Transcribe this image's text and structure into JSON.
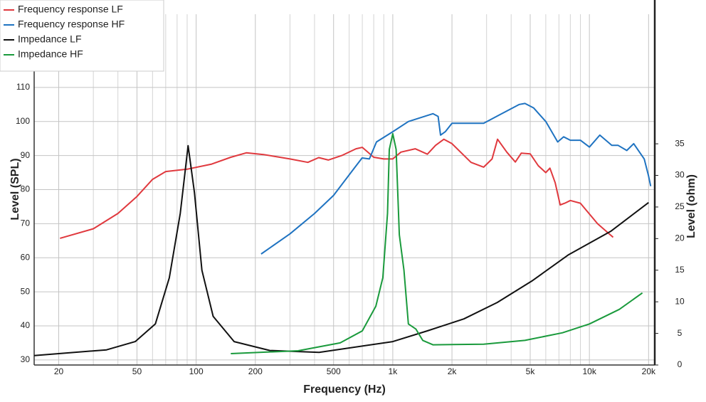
{
  "chart_data": {
    "type": "line",
    "xlabel": "Frequency (Hz)",
    "ylabel": "Level (SPL)",
    "y2label": "Level (ohm)",
    "log_x": true,
    "grid": true,
    "legend": "top-left",
    "xlim": [
      15,
      21500
    ],
    "xticks": [
      20,
      50,
      100,
      200,
      500,
      {
        "value": 1000,
        "label": "1k"
      },
      {
        "value": 2000,
        "label": "2k"
      },
      {
        "value": 5000,
        "label": "5k"
      },
      {
        "value": 10000,
        "label": "10k"
      },
      {
        "value": 20000,
        "label": "20k"
      }
    ],
    "xminor": [
      30,
      40,
      60,
      70,
      80,
      90,
      300,
      400,
      600,
      700,
      800,
      900,
      3000,
      4000,
      6000,
      7000,
      8000,
      9000
    ],
    "ylim": [
      28.5,
      131.5
    ],
    "yticks": [
      30,
      40,
      50,
      60,
      70,
      80,
      90,
      100,
      110
    ],
    "y2lim": [
      0,
      55.5
    ],
    "y2ticks": [
      0,
      5,
      10,
      15,
      20,
      25,
      30,
      35
    ],
    "series": [
      {
        "name": "Frequency response LF",
        "color": "#e0393e",
        "axis": "y",
        "x": [
          20.3,
          30,
          40,
          50,
          60,
          70,
          90,
          120,
          150,
          180,
          220,
          300,
          370,
          420,
          470,
          550,
          650,
          700,
          800,
          900,
          1000,
          1100,
          1300,
          1500,
          1650,
          1820,
          2000,
          2500,
          2900,
          3200,
          3410,
          3800,
          4200,
          4500,
          5000,
          5500,
          6000,
          6300,
          6700,
          7100,
          7500,
          8000,
          9000,
          11000,
          13200
        ],
        "values": [
          65.7,
          68.5,
          73,
          78,
          83,
          85.3,
          86,
          87.5,
          89.5,
          90.8,
          90.3,
          89,
          88,
          89.4,
          88.7,
          90,
          92,
          92.4,
          89.5,
          89,
          89,
          91,
          92,
          90.4,
          93,
          94.8,
          93.5,
          88,
          86.6,
          89,
          94.8,
          91,
          88.1,
          90.7,
          90.5,
          87,
          85,
          86.3,
          82,
          75.5,
          76,
          76.8,
          76,
          70,
          66
        ]
      },
      {
        "name": "Frequency response HF",
        "color": "#1f73c1",
        "axis": "y",
        "x": [
          214,
          300,
          400,
          500,
          643,
          698,
          760,
          826,
          1000,
          1200,
          1470,
          1600,
          1700,
          1750,
          1850,
          2000,
          2500,
          2900,
          3500,
          4400,
          4700,
          5200,
          6000,
          6900,
          7400,
          8000,
          9000,
          10000,
          11300,
          13000,
          14000,
          15500,
          16800,
          19000,
          20000,
          20500
        ],
        "values": [
          61.1,
          67,
          73,
          78.3,
          86.6,
          89.3,
          89,
          94,
          97,
          100,
          101.6,
          102.3,
          101.5,
          96,
          97,
          99.5,
          99.5,
          99.5,
          102,
          105,
          105.3,
          104,
          100,
          94,
          95.5,
          94.5,
          94.5,
          92.5,
          96,
          93,
          93,
          91.5,
          93.5,
          89,
          84,
          81
        ]
      },
      {
        "name": "Impedance LF",
        "color": "#111111",
        "axis": "y2",
        "x": [
          15,
          35,
          49,
          62,
          73,
          83,
          91,
          98,
          107,
          122,
          156,
          237,
          422,
          1000,
          1500,
          2300,
          3400,
          5100,
          7800,
          12900,
          20000
        ],
        "values": [
          1.5,
          2.4,
          3.7,
          6.5,
          13.8,
          24,
          34.7,
          27.3,
          15,
          7.7,
          3.7,
          2.3,
          2,
          3.7,
          5.4,
          7.3,
          9.9,
          13.3,
          17.4,
          21.2,
          25.7
        ]
      },
      {
        "name": "Impedance HF",
        "color": "#1a9a3c",
        "axis": "y2",
        "x": [
          150,
          330,
          540,
          700,
          820,
          890,
          940,
          960,
          1000,
          1040,
          1080,
          1140,
          1200,
          1310,
          1420,
          1600,
          2900,
          4700,
          7300,
          10000,
          14200,
          18600
        ],
        "values": [
          1.8,
          2.25,
          3.5,
          5.4,
          9.3,
          13.8,
          24,
          34.1,
          36.6,
          34.1,
          20.6,
          15,
          6.5,
          5.7,
          3.9,
          3.2,
          3.3,
          3.9,
          5.1,
          6.5,
          8.8,
          11.4
        ]
      }
    ]
  }
}
